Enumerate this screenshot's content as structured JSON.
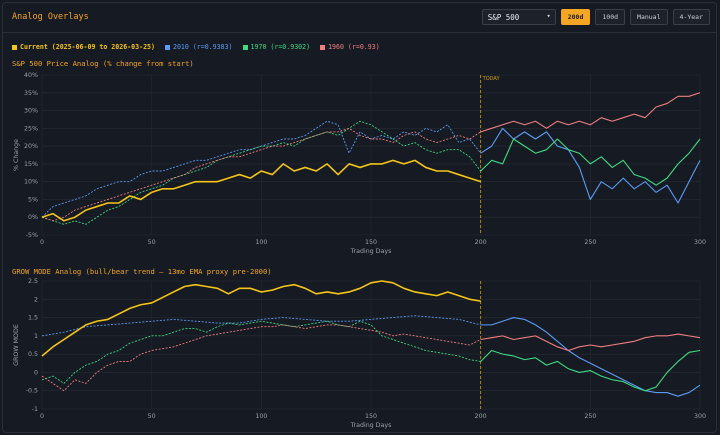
{
  "header": {
    "title": "Analog Overlays",
    "index_select": "S&P 500",
    "buttons": [
      "200d",
      "100d",
      "Manual",
      "4-Year"
    ],
    "active_button": "200d"
  },
  "legend": [
    {
      "label": "Current (2025-06-09 to 2026-03-25)",
      "color": "#f5c518"
    },
    {
      "label": "2010 (r=0.9383)",
      "color": "#5b9cf5"
    },
    {
      "label": "1970 (r=0.9302)",
      "color": "#3ddc84"
    },
    {
      "label": "1960 (r=0.93)",
      "color": "#f08080"
    }
  ],
  "colors": {
    "accent": "#f5a623",
    "today": "#d4a017",
    "grid": "#262b33"
  },
  "chart_data": [
    {
      "type": "line",
      "title": "S&P 500 Price Analog (% change from start)",
      "xlabel": "Trading Days",
      "ylabel": "% Change",
      "xlim": [
        0,
        300
      ],
      "ylim": [
        -5,
        40
      ],
      "xticks": [
        0,
        50,
        100,
        150,
        200,
        250,
        300
      ],
      "yticks": [
        -5,
        0,
        5,
        10,
        15,
        20,
        25,
        30,
        35,
        40
      ],
      "ytick_labels": [
        "-5%",
        "0%",
        "5%",
        "10%",
        "15%",
        "20%",
        "25%",
        "30%",
        "35%",
        "40%"
      ],
      "vline": {
        "x": 200,
        "label": "TODAY"
      },
      "grid": true,
      "series": [
        {
          "name": "Current",
          "color": "#f5c518",
          "width": 1.6,
          "x": [
            0,
            5,
            10,
            15,
            20,
            25,
            30,
            35,
            40,
            45,
            50,
            55,
            60,
            65,
            70,
            75,
            80,
            85,
            90,
            95,
            100,
            105,
            110,
            115,
            120,
            125,
            130,
            135,
            140,
            145,
            150,
            155,
            160,
            165,
            170,
            175,
            180,
            185,
            190,
            195,
            200
          ],
          "y": [
            0,
            1,
            -1,
            0,
            2,
            3,
            4,
            4,
            6,
            5,
            7,
            8,
            8,
            9,
            10,
            10,
            10,
            11,
            12,
            11,
            13,
            12,
            15,
            13,
            14,
            13,
            15,
            12,
            15,
            14,
            15,
            15,
            16,
            15,
            16,
            14,
            13,
            13,
            12,
            11,
            10
          ]
        },
        {
          "name": "2010",
          "color": "#5b9cf5",
          "width": 1.1,
          "dash_until": 200,
          "x": [
            0,
            5,
            10,
            15,
            20,
            25,
            30,
            35,
            40,
            45,
            50,
            55,
            60,
            65,
            70,
            75,
            80,
            85,
            90,
            95,
            100,
            105,
            110,
            115,
            120,
            125,
            130,
            135,
            140,
            145,
            150,
            155,
            160,
            165,
            170,
            175,
            180,
            185,
            190,
            195,
            200,
            205,
            210,
            215,
            220,
            225,
            230,
            235,
            240,
            245,
            250,
            255,
            260,
            265,
            270,
            275,
            280,
            285,
            290,
            295,
            300
          ],
          "y": [
            0,
            3,
            4,
            5,
            6,
            8,
            9,
            10,
            10,
            12,
            13,
            13,
            14,
            15,
            16,
            16,
            17,
            18,
            19,
            19,
            20,
            21,
            22,
            22,
            23,
            25,
            27,
            26,
            18,
            24,
            22,
            23,
            22,
            24,
            23,
            25,
            24,
            26,
            21,
            22,
            18,
            20,
            25,
            22,
            24,
            22,
            24,
            20,
            19,
            14,
            5,
            10,
            8,
            11,
            8,
            10,
            7,
            9,
            4,
            10,
            16
          ]
        },
        {
          "name": "1970",
          "color": "#3ddc84",
          "width": 1.1,
          "dash_until": 200,
          "x": [
            0,
            5,
            10,
            15,
            20,
            25,
            30,
            35,
            40,
            45,
            50,
            55,
            60,
            65,
            70,
            75,
            80,
            85,
            90,
            95,
            100,
            105,
            110,
            115,
            120,
            125,
            130,
            135,
            140,
            145,
            150,
            155,
            160,
            165,
            170,
            175,
            180,
            185,
            190,
            195,
            200,
            205,
            210,
            215,
            220,
            225,
            230,
            235,
            240,
            245,
            250,
            255,
            260,
            265,
            270,
            275,
            280,
            285,
            290,
            295,
            300
          ],
          "y": [
            0,
            -1,
            -2,
            -1,
            -2,
            0,
            2,
            3,
            5,
            7,
            8,
            9,
            11,
            12,
            13,
            14,
            16,
            17,
            18,
            19,
            20,
            20,
            21,
            20,
            22,
            23,
            24,
            23,
            25,
            27,
            26,
            24,
            22,
            20,
            21,
            19,
            18,
            19,
            19,
            17,
            13,
            16,
            15,
            22,
            20,
            18,
            19,
            22,
            19,
            18,
            15,
            17,
            14,
            16,
            12,
            11,
            9,
            11,
            15,
            18,
            22
          ]
        },
        {
          "name": "1960",
          "color": "#f08080",
          "width": 1.1,
          "dash_until": 200,
          "x": [
            0,
            5,
            10,
            15,
            20,
            25,
            30,
            35,
            40,
            45,
            50,
            55,
            60,
            65,
            70,
            75,
            80,
            85,
            90,
            95,
            100,
            105,
            110,
            115,
            120,
            125,
            130,
            135,
            140,
            145,
            150,
            155,
            160,
            165,
            170,
            175,
            180,
            185,
            190,
            195,
            200,
            205,
            210,
            215,
            220,
            225,
            230,
            235,
            240,
            245,
            250,
            255,
            260,
            265,
            270,
            275,
            280,
            285,
            290,
            295,
            300
          ],
          "y": [
            0,
            -1,
            0,
            2,
            3,
            4,
            5,
            6,
            7,
            8,
            9,
            10,
            11,
            12,
            14,
            15,
            16,
            17,
            17,
            18,
            19,
            20,
            20,
            21,
            22,
            23,
            24,
            24,
            25,
            23,
            22,
            22,
            21,
            23,
            24,
            22,
            21,
            22,
            23,
            22,
            24,
            25,
            26,
            27,
            26,
            27,
            25,
            27,
            26,
            27,
            26,
            28,
            27,
            28,
            29,
            28,
            31,
            32,
            34,
            34,
            35
          ]
        }
      ]
    },
    {
      "type": "line",
      "title": "GROW MODE Analog (bull/bear trend — 13mo EMA proxy pre-2000)",
      "xlabel": "Trading Days",
      "ylabel": "GROW MODE",
      "xlim": [
        0,
        300
      ],
      "ylim": [
        -1,
        2.5
      ],
      "xticks": [
        0,
        50,
        100,
        150,
        200,
        250,
        300
      ],
      "yticks": [
        -1,
        -0.5,
        0,
        0.5,
        1,
        1.5,
        2,
        2.5
      ],
      "ytick_labels": [
        "-1",
        "-0.5",
        "0",
        "0.5",
        "1",
        "1.5",
        "2",
        "2.5"
      ],
      "vline": {
        "x": 200
      },
      "grid": true,
      "series": [
        {
          "name": "Current",
          "color": "#f5c518",
          "width": 1.6,
          "x": [
            0,
            5,
            10,
            15,
            20,
            25,
            30,
            35,
            40,
            45,
            50,
            55,
            60,
            65,
            70,
            75,
            80,
            85,
            90,
            95,
            100,
            105,
            110,
            115,
            120,
            125,
            130,
            135,
            140,
            145,
            150,
            155,
            160,
            165,
            170,
            175,
            180,
            185,
            190,
            195,
            200
          ],
          "y": [
            0.45,
            0.7,
            0.9,
            1.1,
            1.3,
            1.4,
            1.45,
            1.6,
            1.75,
            1.85,
            1.9,
            2.05,
            2.2,
            2.35,
            2.4,
            2.35,
            2.3,
            2.15,
            2.3,
            2.3,
            2.2,
            2.25,
            2.35,
            2.4,
            2.3,
            2.15,
            2.2,
            2.15,
            2.2,
            2.3,
            2.45,
            2.5,
            2.45,
            2.3,
            2.2,
            2.15,
            2.1,
            2.2,
            2.1,
            2.0,
            1.95
          ]
        },
        {
          "name": "2010",
          "color": "#5b9cf5",
          "width": 1.1,
          "dash_until": 200,
          "x": [
            0,
            10,
            20,
            30,
            40,
            50,
            60,
            70,
            80,
            90,
            100,
            110,
            120,
            130,
            140,
            150,
            160,
            170,
            180,
            190,
            200,
            205,
            210,
            215,
            220,
            225,
            230,
            235,
            240,
            245,
            250,
            255,
            260,
            265,
            270,
            275,
            280,
            285,
            290,
            295,
            300
          ],
          "y": [
            1.0,
            1.1,
            1.25,
            1.3,
            1.35,
            1.4,
            1.45,
            1.4,
            1.35,
            1.35,
            1.45,
            1.5,
            1.45,
            1.4,
            1.4,
            1.45,
            1.5,
            1.55,
            1.5,
            1.45,
            1.3,
            1.3,
            1.4,
            1.5,
            1.45,
            1.3,
            1.1,
            0.85,
            0.6,
            0.4,
            0.25,
            0.1,
            -0.05,
            -0.2,
            -0.35,
            -0.5,
            -0.55,
            -0.55,
            -0.65,
            -0.55,
            -0.35
          ]
        },
        {
          "name": "1970",
          "color": "#3ddc84",
          "width": 1.1,
          "dash_until": 200,
          "x": [
            0,
            5,
            10,
            15,
            20,
            25,
            30,
            35,
            40,
            45,
            50,
            55,
            60,
            65,
            70,
            75,
            80,
            85,
            90,
            95,
            100,
            105,
            110,
            115,
            120,
            125,
            130,
            135,
            140,
            145,
            150,
            155,
            160,
            165,
            170,
            175,
            180,
            185,
            190,
            195,
            200,
            205,
            210,
            215,
            220,
            225,
            230,
            235,
            240,
            245,
            250,
            255,
            260,
            265,
            270,
            275,
            280,
            285,
            290,
            295,
            300
          ],
          "y": [
            -0.2,
            -0.1,
            -0.3,
            0.0,
            0.2,
            0.3,
            0.5,
            0.6,
            0.8,
            0.9,
            1.0,
            1.0,
            1.1,
            1.2,
            1.2,
            1.1,
            1.25,
            1.35,
            1.3,
            1.35,
            1.4,
            1.35,
            1.3,
            1.25,
            1.3,
            1.35,
            1.4,
            1.3,
            1.25,
            1.4,
            1.3,
            1.0,
            0.9,
            0.8,
            0.7,
            0.6,
            0.55,
            0.5,
            0.45,
            0.35,
            0.3,
            0.6,
            0.5,
            0.45,
            0.35,
            0.4,
            0.2,
            0.3,
            0.1,
            0.0,
            0.05,
            -0.1,
            -0.2,
            -0.25,
            -0.4,
            -0.5,
            -0.4,
            0.0,
            0.3,
            0.55,
            0.6
          ]
        },
        {
          "name": "1960",
          "color": "#f08080",
          "width": 1.1,
          "dash_until": 200,
          "x": [
            0,
            5,
            10,
            15,
            20,
            25,
            30,
            35,
            40,
            45,
            50,
            55,
            60,
            65,
            70,
            75,
            80,
            85,
            90,
            95,
            100,
            105,
            110,
            115,
            120,
            125,
            130,
            135,
            140,
            145,
            150,
            155,
            160,
            165,
            170,
            175,
            180,
            185,
            190,
            195,
            200,
            205,
            210,
            215,
            220,
            225,
            230,
            235,
            240,
            245,
            250,
            255,
            260,
            265,
            270,
            275,
            280,
            285,
            290,
            295,
            300
          ],
          "y": [
            -0.1,
            -0.3,
            -0.5,
            -0.2,
            -0.3,
            0.0,
            0.2,
            0.3,
            0.3,
            0.5,
            0.6,
            0.65,
            0.7,
            0.8,
            0.9,
            1.0,
            1.05,
            1.1,
            1.15,
            1.2,
            1.25,
            1.25,
            1.3,
            1.25,
            1.2,
            1.25,
            1.3,
            1.3,
            1.25,
            1.2,
            1.15,
            1.1,
            1.0,
            1.05,
            1.0,
            0.95,
            0.9,
            0.85,
            0.8,
            0.75,
            0.9,
            0.95,
            1.0,
            0.9,
            0.95,
            1.0,
            0.85,
            0.7,
            0.6,
            0.7,
            0.75,
            0.7,
            0.75,
            0.8,
            0.85,
            0.95,
            1.0,
            1.0,
            1.05,
            1.0,
            0.95
          ]
        }
      ]
    }
  ]
}
